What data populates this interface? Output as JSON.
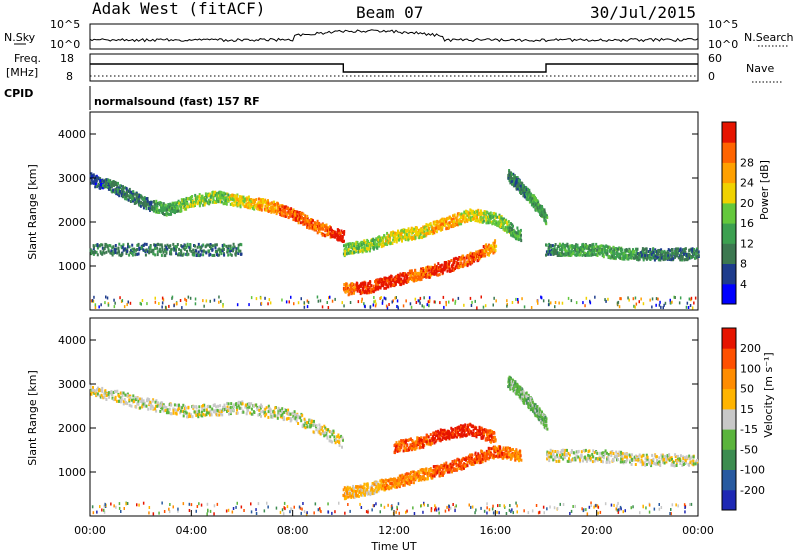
{
  "header": {
    "station": "Adak West (fitACF)",
    "beam": "Beam 07",
    "date": "30/Jul/2015"
  },
  "left_labels": {
    "nsky": "N.Sky",
    "freq": "Freq.",
    "mhz": "[MHz]",
    "cpid": "CPID"
  },
  "right_labels": {
    "nsearch": "N.Search",
    "nave": "Nave"
  },
  "nsky_ticks": [
    "10^5",
    "10^0"
  ],
  "nsearch_ticks": [
    "10^5",
    "10^0"
  ],
  "freq_ticks": [
    "18",
    "8"
  ],
  "nave_ticks": [
    "60",
    "0"
  ],
  "cpid_text": "normalsound (fast) 157 RF",
  "colors": {
    "power_scale": [
      "#0000ff",
      "#1e3c8c",
      "#3c7850",
      "#3ca050",
      "#64c83c",
      "#f0d200",
      "#ffa000",
      "#ff6400",
      "#e61400"
    ],
    "velocity_scale": [
      "#1e28b4",
      "#285aa0",
      "#3c8c50",
      "#5ab43c",
      "#c8c8c8",
      "#ffb400",
      "#ff8c00",
      "#ff5000",
      "#e61400"
    ],
    "ground_scatter": "#b4b4b4"
  },
  "chart_data": [
    {
      "type": "heatmap",
      "name": "power",
      "ylabel": "Slant Range [km]",
      "yticks": [
        "1000",
        "2000",
        "3000",
        "4000"
      ],
      "colorbar_label": "Power [dB]",
      "colorbar_ticks": [
        "4",
        "8",
        "12",
        "16",
        "20",
        "24",
        "28"
      ],
      "bands": [
        {
          "t_hours": [
            0.0,
            1.0,
            2.0,
            3.0,
            4.0,
            5.0,
            6.0,
            7.0,
            8.0,
            9.0,
            10.0
          ],
          "range_km": [
            3000,
            2800,
            2500,
            2300,
            2500,
            2600,
            2500,
            2400,
            2200,
            1900,
            1700
          ],
          "level": [
            1,
            2,
            2,
            3,
            4,
            4,
            5,
            6,
            7,
            7,
            8
          ]
        },
        {
          "t_hours": [
            10.0,
            11.0,
            12.0,
            13.0,
            14.0,
            15.0,
            16.0,
            17.0
          ],
          "range_km": [
            1400,
            1500,
            1700,
            1800,
            2000,
            2200,
            2100,
            1700
          ],
          "level": [
            4,
            4,
            5,
            5,
            6,
            5,
            4,
            3
          ]
        },
        {
          "t_hours": [
            10.0,
            11.0,
            12.0,
            13.0,
            14.0,
            15.0,
            16.0
          ],
          "range_km": [
            500,
            550,
            700,
            850,
            1000,
            1200,
            1500
          ],
          "level": [
            7,
            8,
            8,
            7,
            8,
            7,
            6
          ]
        },
        {
          "t_hours": [
            0.0,
            2.0,
            4.0,
            6.0
          ],
          "range_km": [
            1400,
            1400,
            1400,
            1400
          ],
          "level": [
            2,
            2,
            2,
            2
          ]
        },
        {
          "t_hours": [
            18.0,
            19.0,
            20.0,
            21.0,
            22.0,
            23.0,
            24.0
          ],
          "range_km": [
            1400,
            1400,
            1400,
            1300,
            1300,
            1300,
            1300
          ],
          "level": [
            2,
            3,
            3,
            3,
            2,
            2,
            2
          ]
        },
        {
          "t_hours": [
            16.5,
            17.0,
            17.5,
            18.0
          ],
          "range_km": [
            3100,
            2800,
            2500,
            2100
          ],
          "level": [
            2,
            2,
            3,
            3
          ]
        }
      ]
    },
    {
      "type": "heatmap",
      "name": "velocity",
      "ylabel": "Slant Range [km]",
      "yticks": [
        "1000",
        "2000",
        "3000",
        "4000"
      ],
      "xticks": [
        "00:00",
        "04:00",
        "08:00",
        "12:00",
        "16:00",
        "20:00",
        "00:00"
      ],
      "xlabel": "Time UT",
      "colorbar_label": "Velocity [m s⁻¹]",
      "colorbar_ticks": [
        "200",
        "100",
        "50",
        "15",
        "-15",
        "-50",
        "-100",
        "-200"
      ],
      "bands": [
        {
          "t_hours": [
            0.0,
            2.0,
            4.0,
            6.0,
            8.0,
            10.0
          ],
          "range_km": [
            2900,
            2600,
            2400,
            2500,
            2300,
            1700
          ],
          "level": [
            4,
            4,
            4,
            4,
            4,
            4
          ]
        },
        {
          "t_hours": [
            10.0,
            11.0,
            12.0,
            13.0,
            14.0,
            15.0,
            16.0,
            17.0
          ],
          "range_km": [
            550,
            650,
            800,
            950,
            1100,
            1300,
            1500,
            1400
          ],
          "level": [
            5,
            5,
            6,
            6,
            7,
            7,
            7,
            6
          ]
        },
        {
          "t_hours": [
            12.0,
            13.0,
            14.0,
            15.0,
            16.0
          ],
          "range_km": [
            1600,
            1700,
            1900,
            2000,
            1800
          ],
          "level": [
            7,
            7,
            8,
            8,
            7
          ]
        },
        {
          "t_hours": [
            16.5,
            17.0,
            17.5,
            18.0
          ],
          "range_km": [
            3100,
            2800,
            2500,
            2100
          ],
          "level": [
            3,
            3,
            3,
            3
          ]
        },
        {
          "t_hours": [
            18.0,
            20.0,
            22.0,
            24.0
          ],
          "range_km": [
            1400,
            1400,
            1300,
            1300
          ],
          "level": [
            4,
            4,
            4,
            4
          ]
        }
      ]
    }
  ]
}
